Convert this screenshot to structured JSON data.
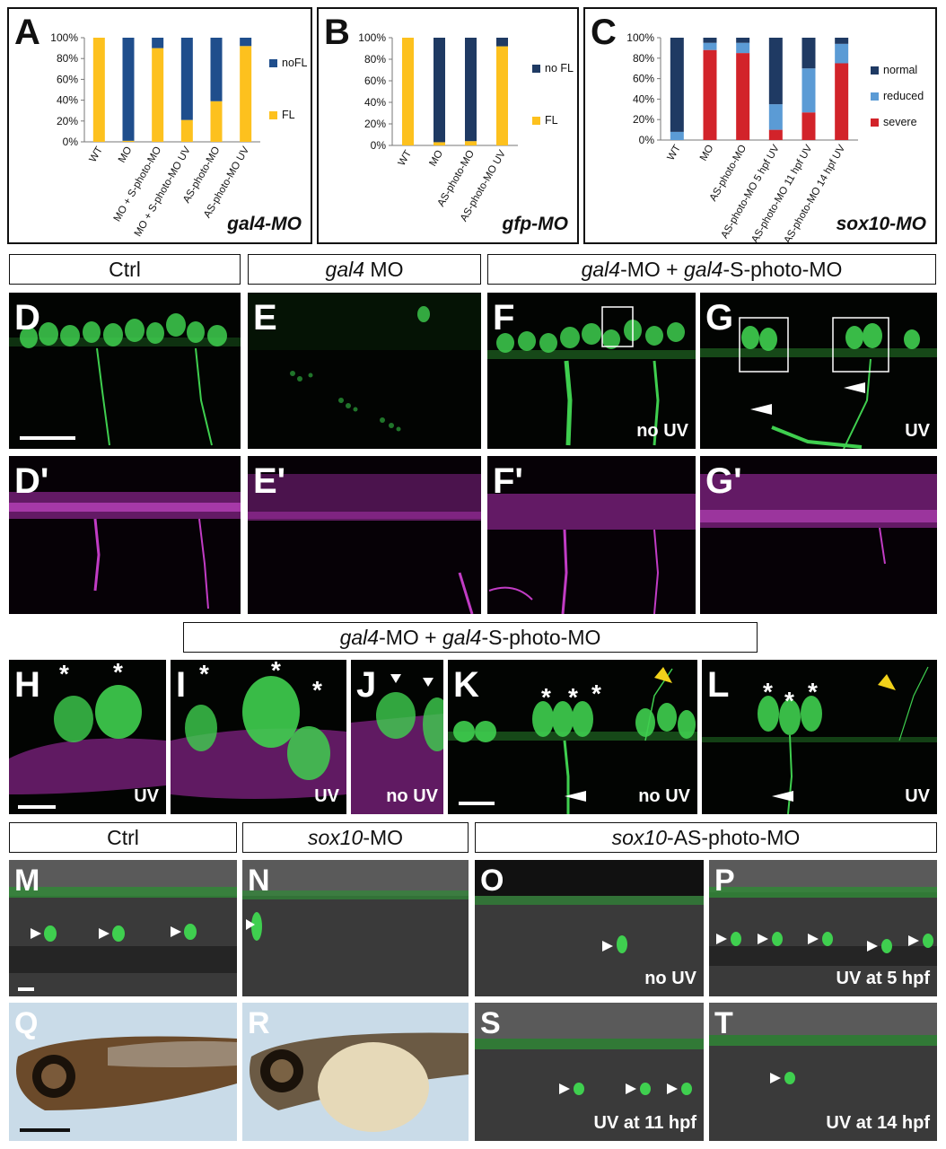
{
  "chart_data": [
    {
      "type": "bar",
      "stacked": true,
      "panel": "A",
      "categories": [
        "WT",
        "MO",
        "MO + S-photo-MO",
        "MO + S-photo-MO UV",
        "AS-photo-MO",
        "AS-photo-MO UV"
      ],
      "series": [
        {
          "name": "FL",
          "color": "#FDC11E",
          "values": [
            100,
            1,
            90,
            21,
            39,
            92
          ]
        },
        {
          "name": "noFL",
          "color": "#1F4E8C",
          "values": [
            0,
            99,
            10,
            79,
            61,
            8
          ]
        }
      ],
      "ylim": [
        0,
        100
      ],
      "yticks": [
        "0%",
        "20%",
        "40%",
        "60%",
        "80%",
        "100%"
      ],
      "legend": "right",
      "tag_main": "gal4",
      "tag_suffix": "-MO"
    },
    {
      "type": "bar",
      "stacked": true,
      "panel": "B",
      "categories": [
        "WT",
        "MO",
        "AS-photo-MO",
        "AS-photo-MO UV"
      ],
      "series": [
        {
          "name": "FL",
          "color": "#FDC11E",
          "values": [
            100,
            3,
            4,
            92
          ]
        },
        {
          "name": "no FL",
          "color": "#1F3A63",
          "values": [
            0,
            97,
            96,
            8
          ]
        }
      ],
      "ylim": [
        0,
        100
      ],
      "yticks": [
        "0%",
        "20%",
        "40%",
        "60%",
        "80%",
        "100%"
      ],
      "legend": "right",
      "tag_main": "gfp",
      "tag_suffix": "-MO"
    },
    {
      "type": "bar",
      "stacked": true,
      "panel": "C",
      "categories": [
        "WT",
        "MO",
        "AS-photo-MO",
        "AS-photo-MO 5 hpf UV",
        "AS-photo-MO 11 hpf UV",
        "AS-photo-MO 14 hpf UV"
      ],
      "series": [
        {
          "name": "severe",
          "color": "#D2232A",
          "values": [
            0,
            88,
            85,
            10,
            27,
            75
          ]
        },
        {
          "name": "reduced",
          "color": "#5B9BD5",
          "values": [
            8,
            7,
            10,
            25,
            43,
            19
          ]
        },
        {
          "name": "normal",
          "color": "#1F3A63",
          "values": [
            92,
            5,
            5,
            65,
            30,
            6
          ]
        }
      ],
      "ylim": [
        0,
        100
      ],
      "yticks": [
        "0%",
        "20%",
        "40%",
        "60%",
        "80%",
        "100%"
      ],
      "legend": "right",
      "tag_main": "sox10",
      "tag_suffix": "-MO"
    }
  ],
  "panel_labels": {
    "A": "A",
    "B": "B",
    "C": "C",
    "D": "D",
    "E": "E",
    "F": "F",
    "G": "G",
    "Dp": "D'",
    "Ep": "E'",
    "Fp": "F'",
    "Gp": "G'",
    "H": "H",
    "I": "I",
    "J": "J",
    "K": "K",
    "L": "L",
    "M": "M",
    "N": "N",
    "O": "O",
    "P": "P",
    "Q": "Q",
    "R": "R",
    "S": "S",
    "T": "T"
  },
  "headers": {
    "ctrl_top": "Ctrl",
    "gal4_mo_italic": "gal4",
    "gal4_mo_rest": " MO",
    "combo_a": "gal4",
    "combo_b": "-MO + ",
    "combo_c": "gal4",
    "combo_d": "-S-photo-MO",
    "ctrl_bottom": "Ctrl",
    "sox10_mo_italic": "sox10",
    "sox10_mo_rest": "-MO",
    "sox10_as_italic": "sox10",
    "sox10_as_rest": "-AS-photo-MO"
  },
  "annotations": {
    "no_uv": "no UV",
    "uv": "UV",
    "uv5": "UV at 5 hpf",
    "uv11": "UV at 11 hpf",
    "uv14": "UV at 14 hpf",
    "asterisk": "*"
  },
  "colors": {
    "gfp_green": "#39d24a",
    "magenta": "#c13cc4",
    "arrow_white": "#ffffff",
    "arrow_yellow": "#f2d21a"
  }
}
